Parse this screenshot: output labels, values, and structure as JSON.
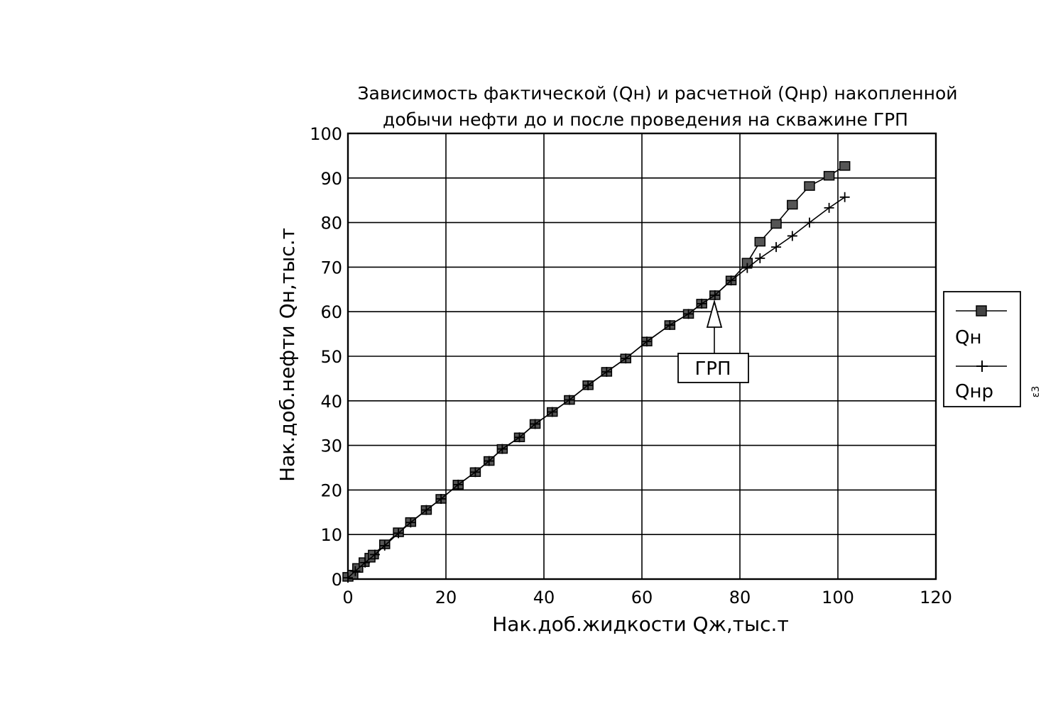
{
  "chart_data": {
    "type": "line",
    "title_lines": [
      "Зависимость фактической (Qн) и расчетной (Qнр) накопленной",
      "добычи нефти до и после проведения на скважине ГРП"
    ],
    "xlabel": "Нак.доб.жидкости Qж,тыс.т",
    "ylabel": "Нак.доб.нефти Qн,тыс.т",
    "xlim": [
      0,
      120
    ],
    "ylim": [
      0,
      100
    ],
    "xticks": [
      "0",
      "20",
      "40",
      "60",
      "80",
      "100",
      "120"
    ],
    "yticks": [
      "0",
      "10",
      "20",
      "30",
      "40",
      "50",
      "60",
      "70",
      "80",
      "90",
      "100"
    ],
    "grid": true,
    "legend_position": "right",
    "series": [
      {
        "name": "Qн",
        "marker": "square",
        "points": [
          [
            0,
            0.5
          ],
          [
            1,
            1
          ],
          [
            2,
            2.5
          ],
          [
            3.3,
            3.8
          ],
          [
            4.5,
            4.8
          ],
          [
            5.2,
            5.5
          ],
          [
            7.5,
            7.8
          ],
          [
            10.3,
            10.5
          ],
          [
            12.8,
            12.8
          ],
          [
            16,
            15.5
          ],
          [
            19,
            18
          ],
          [
            22.5,
            21.2
          ],
          [
            26,
            24
          ],
          [
            28.8,
            26.5
          ],
          [
            31.5,
            29.2
          ],
          [
            35,
            31.8
          ],
          [
            38.2,
            34.8
          ],
          [
            41.7,
            37.5
          ],
          [
            45.2,
            40.2
          ],
          [
            49,
            43.5
          ],
          [
            52.8,
            46.5
          ],
          [
            56.7,
            49.5
          ],
          [
            61,
            53.3
          ],
          [
            65.7,
            57
          ],
          [
            69.5,
            59.5
          ],
          [
            72.2,
            61.8
          ],
          [
            74.9,
            63.7
          ],
          [
            78.2,
            67
          ],
          [
            81.5,
            71
          ],
          [
            84.1,
            75.7
          ],
          [
            87.4,
            79.7
          ],
          [
            90.7,
            84
          ],
          [
            94.2,
            88.2
          ],
          [
            98.2,
            90.5
          ],
          [
            101.4,
            92.7
          ]
        ]
      },
      {
        "name": "Qнр",
        "marker": "plus",
        "points": [
          [
            0,
            0.3
          ],
          [
            1.5,
            1.8
          ],
          [
            3.5,
            3.7
          ],
          [
            5.5,
            5.5
          ],
          [
            7.5,
            7.5
          ],
          [
            10.3,
            10.3
          ],
          [
            12.8,
            12.7
          ],
          [
            16,
            15.5
          ],
          [
            19,
            18
          ],
          [
            22.5,
            21.2
          ],
          [
            26,
            24
          ],
          [
            28.8,
            26.5
          ],
          [
            31.5,
            29.2
          ],
          [
            35,
            31.8
          ],
          [
            38.2,
            34.8
          ],
          [
            41.7,
            37.5
          ],
          [
            45.2,
            40.2
          ],
          [
            49,
            43.5
          ],
          [
            52.8,
            46.5
          ],
          [
            56.7,
            49.5
          ],
          [
            61,
            53.3
          ],
          [
            65.7,
            57
          ],
          [
            69.5,
            59.5
          ],
          [
            72.2,
            61.8
          ],
          [
            74.9,
            63.7
          ],
          [
            78.2,
            67
          ],
          [
            81.5,
            69.8
          ],
          [
            84.1,
            72
          ],
          [
            87.4,
            74.5
          ],
          [
            90.7,
            77
          ],
          [
            94.2,
            80
          ],
          [
            98.2,
            83.3
          ],
          [
            101.4,
            85.7
          ]
        ]
      }
    ],
    "annotation": {
      "label": "ГРП",
      "arrow_target": [
        74.9,
        63.5
      ]
    },
    "side_mark": "ε3"
  }
}
